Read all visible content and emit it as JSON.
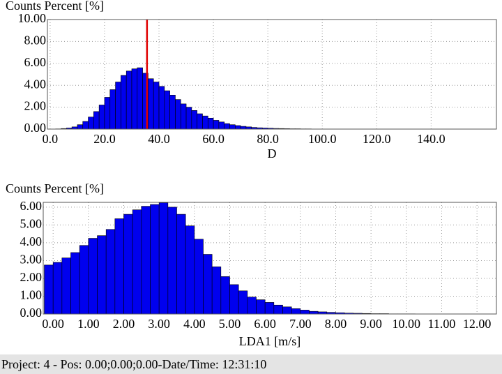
{
  "chart_data": [
    {
      "type": "histogram",
      "title": "Counts Percent [%]",
      "x_label": "D",
      "color": "#0000ee",
      "grid": true,
      "bins": [
        0,
        2,
        4,
        6,
        8,
        10,
        12,
        14,
        16,
        18,
        20,
        22,
        24,
        26,
        28,
        30,
        32,
        34,
        36,
        38,
        40,
        42,
        44,
        46,
        48,
        50,
        52,
        54,
        56,
        58,
        60,
        62,
        64,
        66,
        68,
        70,
        72,
        74,
        76,
        78,
        80,
        82,
        84,
        86,
        88,
        90,
        92,
        94,
        96,
        98,
        100,
        102,
        104,
        106,
        108,
        110
      ],
      "values": [
        0,
        0.02,
        0.05,
        0.1,
        0.2,
        0.4,
        0.7,
        1.1,
        1.6,
        2.2,
        2.9,
        3.6,
        4.3,
        4.9,
        5.3,
        5.5,
        5.6,
        5.1,
        4.6,
        4.3,
        3.9,
        3.5,
        3.1,
        2.7,
        2.3,
        2.0,
        1.7,
        1.4,
        1.2,
        1.0,
        0.8,
        0.65,
        0.5,
        0.4,
        0.32,
        0.25,
        0.2,
        0.15,
        0.12,
        0.1,
        0.08,
        0.06,
        0.05,
        0.04,
        0.03,
        0.03,
        0.02,
        0.02,
        0.01,
        0.01,
        0.01,
        0.01,
        0.01,
        0.01,
        0.01
      ],
      "vline": 35.6,
      "vline_color": "#e00000",
      "xlim": [
        -1,
        164
      ],
      "ylim": [
        0,
        10
      ],
      "xticks": [
        {
          "value": 0,
          "label": "0.0"
        },
        {
          "value": 20,
          "label": "20.0"
        },
        {
          "value": 40,
          "label": "40.0"
        },
        {
          "value": 60,
          "label": "60.0"
        },
        {
          "value": 80,
          "label": "80.0"
        },
        {
          "value": 100,
          "label": "100.0"
        },
        {
          "value": 120,
          "label": "120.0"
        },
        {
          "value": 140,
          "label": "140.0"
        }
      ],
      "yticks": [
        {
          "value": 0,
          "label": "0.00"
        },
        {
          "value": 2,
          "label": "2.00"
        },
        {
          "value": 4,
          "label": "4.00"
        },
        {
          "value": 6,
          "label": "6.00"
        },
        {
          "value": 8,
          "label": "8.00"
        },
        {
          "value": 10,
          "label": "10.00"
        }
      ]
    },
    {
      "type": "histogram",
      "title": "Counts Percent [%]",
      "x_label": "LDA1 [m/s]",
      "color": "#0000ee",
      "grid": true,
      "bins": [
        -0.25,
        0,
        0.25,
        0.5,
        0.75,
        1,
        1.25,
        1.5,
        1.75,
        2,
        2.25,
        2.5,
        2.75,
        3,
        3.25,
        3.5,
        3.75,
        4,
        4.25,
        4.5,
        4.75,
        5,
        5.25,
        5.5,
        5.75,
        6,
        6.25,
        6.5,
        6.75,
        7,
        7.25,
        7.5,
        7.75,
        8,
        8.25,
        8.5,
        8.75,
        9,
        9.25,
        9.5,
        9.75,
        10,
        10.25
      ],
      "values": [
        2.75,
        2.9,
        3.15,
        3.45,
        3.85,
        4.25,
        4.4,
        4.75,
        5.35,
        5.6,
        5.85,
        6.05,
        6.15,
        6.25,
        6.0,
        5.6,
        4.95,
        4.2,
        3.35,
        2.65,
        2.1,
        1.65,
        1.3,
        0.95,
        0.8,
        0.65,
        0.5,
        0.4,
        0.3,
        0.22,
        0.15,
        0.12,
        0.09,
        0.07,
        0.05,
        0.04,
        0.03,
        0.02,
        0.02,
        0.01,
        0.01,
        0.01
      ],
      "xlim": [
        -0.28,
        12.55
      ],
      "ylim": [
        0,
        6.27
      ],
      "xticks": [
        {
          "value": 0,
          "label": "0.00"
        },
        {
          "value": 1,
          "label": "1.00"
        },
        {
          "value": 2,
          "label": "2.00"
        },
        {
          "value": 3,
          "label": "3.00"
        },
        {
          "value": 4,
          "label": "4.00"
        },
        {
          "value": 5,
          "label": "5.00"
        },
        {
          "value": 6,
          "label": "6.00"
        },
        {
          "value": 7,
          "label": "7.00"
        },
        {
          "value": 8,
          "label": "8.00"
        },
        {
          "value": 9,
          "label": "9.00"
        },
        {
          "value": 10,
          "label": "10.00"
        },
        {
          "value": 11,
          "label": "11.00"
        },
        {
          "value": 12,
          "label": "12.00"
        }
      ],
      "yticks": [
        {
          "value": 0,
          "label": "0.00"
        },
        {
          "value": 1,
          "label": "1.00"
        },
        {
          "value": 2,
          "label": "2.00"
        },
        {
          "value": 3,
          "label": "3.00"
        },
        {
          "value": 4,
          "label": "4.00"
        },
        {
          "value": 5,
          "label": "5.00"
        },
        {
          "value": 6,
          "label": "6.00"
        }
      ]
    }
  ],
  "status_bar": "Project: 4 - Pos: 0.00;0.00;0.00-Date/Time: 12:31:10"
}
